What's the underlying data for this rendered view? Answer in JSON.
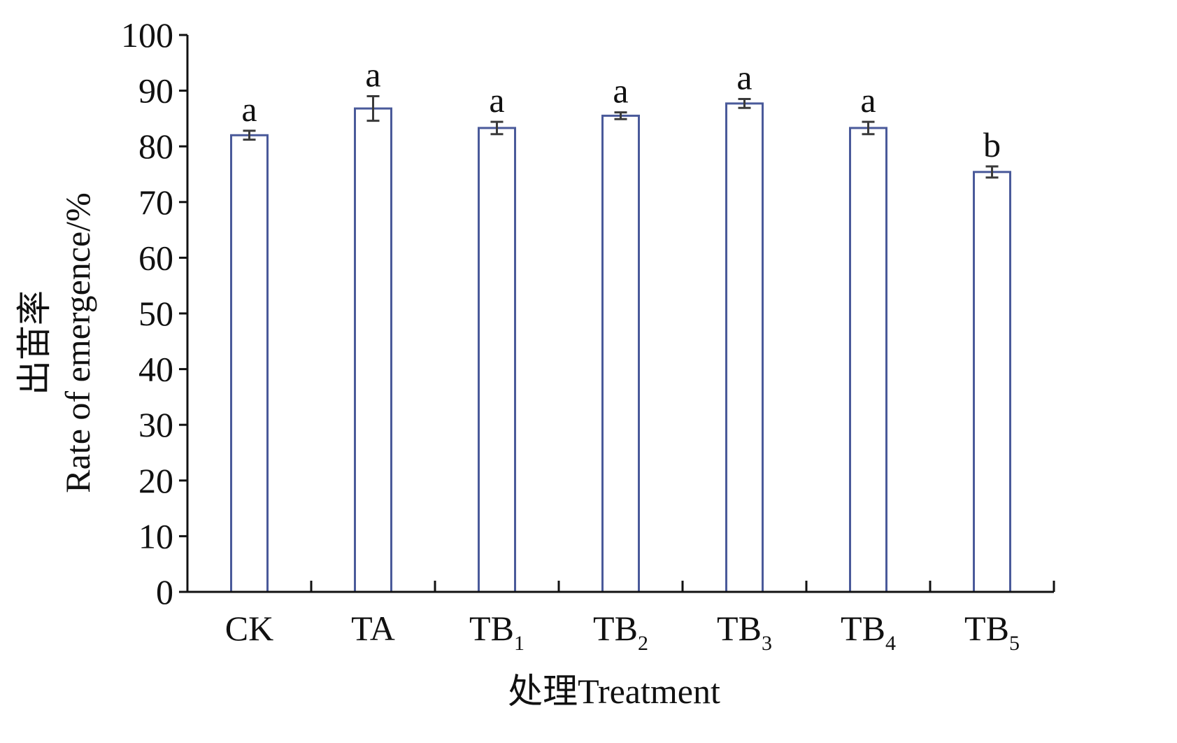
{
  "chart_data": {
    "type": "bar",
    "xlabel": "处理Treatment",
    "ylabel_cn": "出苗率",
    "ylabel_en": "Rate of emergence/%",
    "ylim": [
      0,
      100
    ],
    "yticks": [
      0,
      10,
      20,
      30,
      40,
      50,
      60,
      70,
      80,
      90,
      100
    ],
    "categories": [
      {
        "base": "CK",
        "sub": ""
      },
      {
        "base": "TA",
        "sub": ""
      },
      {
        "base": "TB",
        "sub": "1"
      },
      {
        "base": "TB",
        "sub": "2"
      },
      {
        "base": "TB",
        "sub": "3"
      },
      {
        "base": "TB",
        "sub": "4"
      },
      {
        "base": "TB",
        "sub": "5"
      }
    ],
    "values": [
      82.0,
      86.8,
      83.3,
      85.5,
      87.7,
      83.3,
      75.4
    ],
    "errors": [
      0.8,
      2.2,
      1.1,
      0.6,
      0.8,
      1.1,
      1.0
    ],
    "significance": [
      "a",
      "a",
      "a",
      "a",
      "a",
      "a",
      "b"
    ],
    "grid": false,
    "legend": "none",
    "colors": {
      "bar_edge": "#4a5a9a",
      "bar_fill": "#ffffff",
      "error_bar": "#3a3a3a",
      "axis": "#111111"
    }
  }
}
